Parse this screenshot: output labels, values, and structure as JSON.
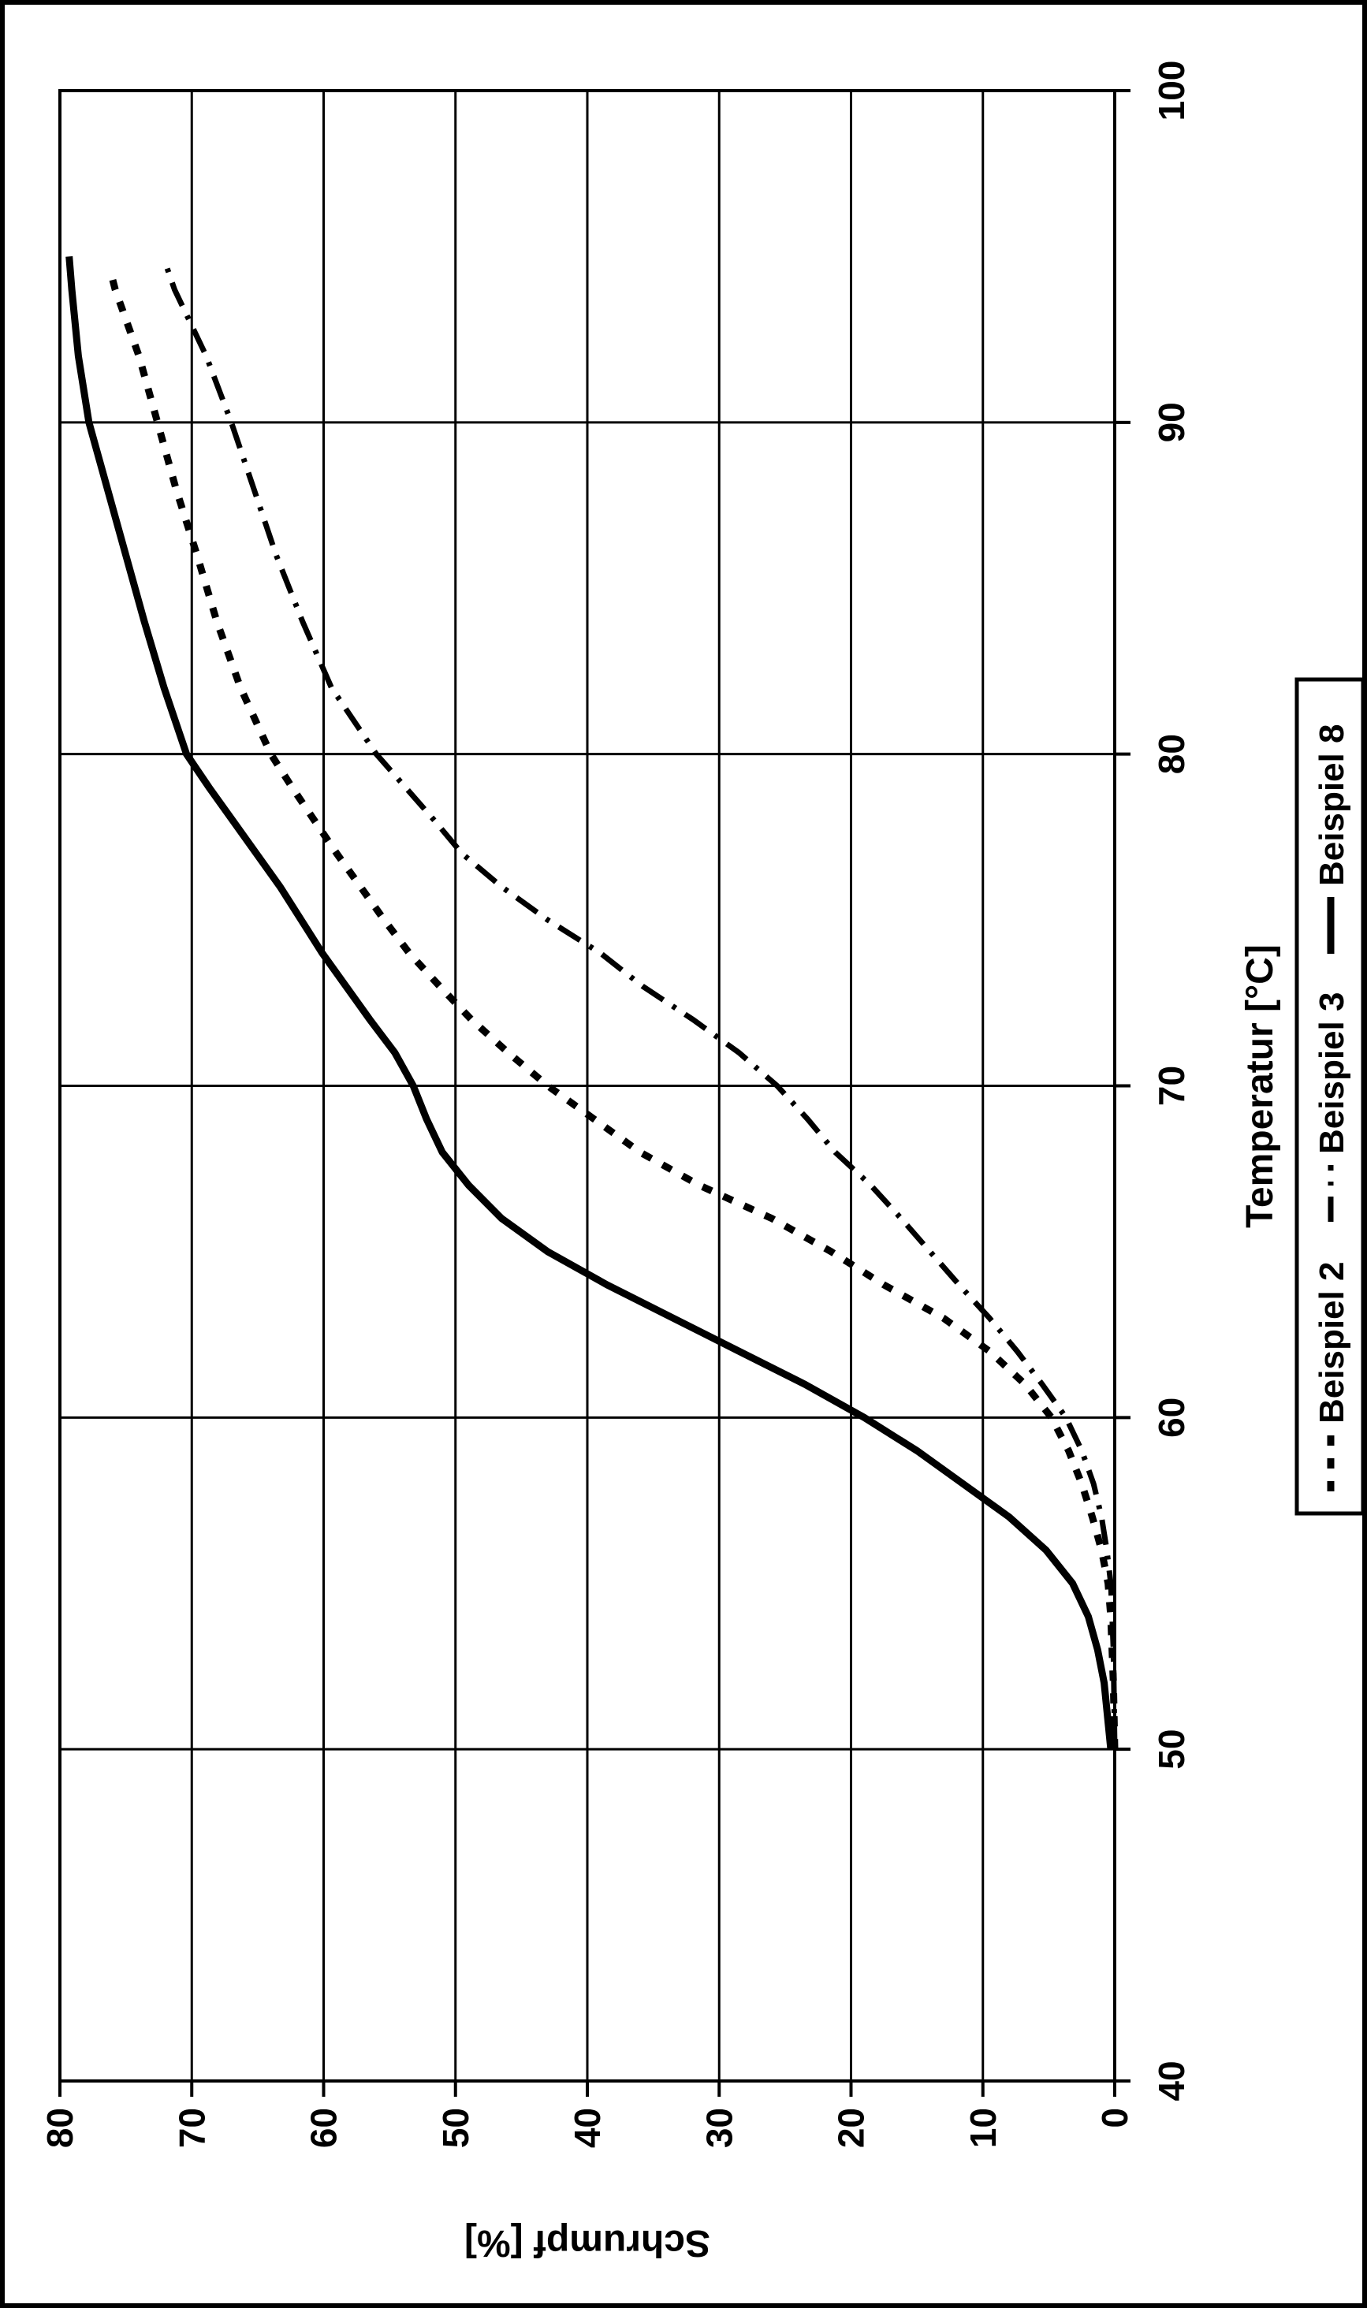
{
  "page": {
    "kind": "scanned patent figure",
    "background": "#ffffff",
    "ink_color": "#000000",
    "rotation_note": "chart rotated 90 degrees counterclockwise on portrait page"
  },
  "chart_data": {
    "type": "line",
    "title": "",
    "xlabel": "Temperatur [°C]",
    "ylabel": "Schrumpf [%]",
    "xlim": [
      40,
      100
    ],
    "ylim": [
      0,
      80
    ],
    "x_ticks": [
      40,
      50,
      60,
      70,
      80,
      90,
      100
    ],
    "y_ticks": [
      0,
      10,
      20,
      30,
      40,
      50,
      60,
      70,
      80
    ],
    "grid": "both",
    "legend_position": "below chart, boxed",
    "series": [
      {
        "name": "Beispiel 2",
        "style": "dashed",
        "points": [
          [
            50,
            0
          ],
          [
            52,
            0.1
          ],
          [
            54,
            0.3
          ],
          [
            55,
            0.5
          ],
          [
            56,
            1
          ],
          [
            57,
            1.7
          ],
          [
            58,
            2.5
          ],
          [
            59,
            3.5
          ],
          [
            60,
            4.8
          ],
          [
            61,
            6.8
          ],
          [
            62,
            9.5
          ],
          [
            63,
            13
          ],
          [
            64,
            17.5
          ],
          [
            65,
            21.5
          ],
          [
            66,
            26
          ],
          [
            67,
            31.5
          ],
          [
            68,
            36
          ],
          [
            69,
            39.5
          ],
          [
            70,
            43
          ],
          [
            71,
            46
          ],
          [
            72,
            48.8
          ],
          [
            73,
            51.2
          ],
          [
            74,
            53.5
          ],
          [
            75,
            55.4
          ],
          [
            76,
            57.2
          ],
          [
            77,
            59
          ],
          [
            78,
            60.7
          ],
          [
            79,
            62.4
          ],
          [
            80,
            64
          ],
          [
            82,
            66.3
          ],
          [
            84,
            68.1
          ],
          [
            86,
            69.6
          ],
          [
            88,
            71.2
          ],
          [
            90,
            72.6
          ],
          [
            92,
            74
          ],
          [
            94,
            75.8
          ],
          [
            94.6,
            76.2
          ]
        ]
      },
      {
        "name": "Beispiel 3",
        "style": "dashdot",
        "points": [
          [
            50,
            0
          ],
          [
            53,
            0.1
          ],
          [
            54,
            0.2
          ],
          [
            55,
            0.3
          ],
          [
            56,
            0.6
          ],
          [
            57,
            1
          ],
          [
            58,
            1.6
          ],
          [
            59,
            2.5
          ],
          [
            60,
            3.7
          ],
          [
            61,
            5.5
          ],
          [
            62,
            7.4
          ],
          [
            63,
            9.5
          ],
          [
            64,
            11.8
          ],
          [
            65,
            14
          ],
          [
            66,
            16.2
          ],
          [
            67,
            18.5
          ],
          [
            68,
            21.2
          ],
          [
            69,
            23.3
          ],
          [
            70,
            25.6
          ],
          [
            71,
            28.5
          ],
          [
            72,
            32
          ],
          [
            73,
            35.8
          ],
          [
            74,
            39
          ],
          [
            75,
            43
          ],
          [
            76,
            46.5
          ],
          [
            77,
            49.5
          ],
          [
            78,
            51.6
          ],
          [
            79,
            53.8
          ],
          [
            80,
            56
          ],
          [
            82,
            59.4
          ],
          [
            84,
            61.6
          ],
          [
            86,
            63.6
          ],
          [
            88,
            65.3
          ],
          [
            90,
            67
          ],
          [
            92,
            68.9
          ],
          [
            94,
            71.3
          ],
          [
            94.8,
            72
          ]
        ]
      },
      {
        "name": "Beispiel 8",
        "style": "solid",
        "points": [
          [
            50,
            0.3
          ],
          [
            52,
            0.8
          ],
          [
            53,
            1.3
          ],
          [
            54,
            2
          ],
          [
            55,
            3.2
          ],
          [
            56,
            5.2
          ],
          [
            57,
            8
          ],
          [
            58,
            11.5
          ],
          [
            59,
            15
          ],
          [
            60,
            19
          ],
          [
            61,
            23.5
          ],
          [
            62,
            28.5
          ],
          [
            63,
            33.5
          ],
          [
            64,
            38.5
          ],
          [
            65,
            43
          ],
          [
            66,
            46.5
          ],
          [
            67,
            49
          ],
          [
            68,
            51
          ],
          [
            69,
            52.2
          ],
          [
            70,
            53.2
          ],
          [
            71,
            54.6
          ],
          [
            72,
            56.5
          ],
          [
            73,
            58.3
          ],
          [
            74,
            60.1
          ],
          [
            75,
            61.7
          ],
          [
            76,
            63.3
          ],
          [
            77,
            65.1
          ],
          [
            78,
            66.9
          ],
          [
            79,
            68.7
          ],
          [
            80,
            70.4
          ],
          [
            82,
            72.1
          ],
          [
            84,
            73.6
          ],
          [
            86,
            75
          ],
          [
            88,
            76.4
          ],
          [
            90,
            77.8
          ],
          [
            92,
            78.6
          ],
          [
            94,
            79.1
          ],
          [
            95,
            79.3
          ]
        ]
      }
    ]
  },
  "legend": {
    "items": [
      {
        "label": "Beispiel 2",
        "style": "dashed"
      },
      {
        "label": "Beispiel 3",
        "style": "dashdot"
      },
      {
        "label": "Beispiel 8",
        "style": "solid"
      }
    ]
  }
}
